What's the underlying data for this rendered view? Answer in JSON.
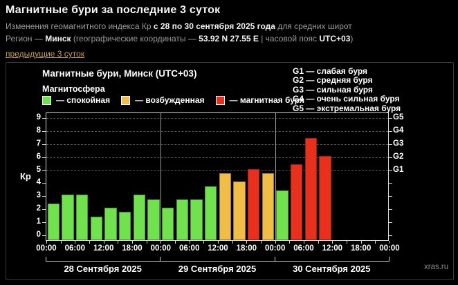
{
  "header": {
    "title": "Магнитные бури за последние 3 суток",
    "line1": [
      {
        "text": "Изменения геомагнитного индекса Кр ",
        "bold": false
      },
      {
        "text": "с 28 по 30 сентября 2025 года",
        "bold": true
      },
      {
        "text": " для средних широт",
        "bold": false
      }
    ],
    "line2": [
      {
        "text": "Регион — ",
        "bold": false
      },
      {
        "text": "Минск",
        "bold": true
      },
      {
        "text": " (географические координаты — ",
        "bold": false
      },
      {
        "text": "53.92 N 27.55 E",
        "bold": true
      },
      {
        "text": " | часовой пояс ",
        "bold": false
      },
      {
        "text": "UTC+03",
        "bold": true
      },
      {
        "text": ")",
        "bold": false
      }
    ],
    "prev_link": "предыдущие 3 суток",
    "link_color": "#c9a227"
  },
  "panel": {
    "chart_title": "Магнитные бури, Минск (UTC+03)",
    "legend_title": "Магнитосфера",
    "legend": [
      {
        "name": "quiet",
        "label": "— спокойная",
        "color": "#70e24d"
      },
      {
        "name": "active",
        "label": "— возбужденная",
        "color": "#f0bd45"
      },
      {
        "name": "storm",
        "label": "— магнитная буря",
        "color": "#e8301c"
      }
    ],
    "g_legend": [
      "G1 — слабая буря",
      "G2 — средняя буря",
      "G3 — сильная буря",
      "G4 — очень сильная буря",
      "G5 — экстремальная буря"
    ],
    "watermark": "xras.ru"
  },
  "chart_data": {
    "type": "bar",
    "title": "Магнитные бури, Минск (UTC+03)",
    "ylabel": "Кр",
    "ylim": [
      0,
      9
    ],
    "y_ticks": [
      0,
      1,
      2,
      3,
      4,
      5,
      6,
      7,
      8,
      9
    ],
    "gridlines_at": [
      5,
      6,
      7,
      8,
      9
    ],
    "grid": "dashed horizontal at Kp 5-9, vertical day separators",
    "legend_position": "top-left",
    "right_axis": [
      {
        "kp": 5,
        "label": "G1"
      },
      {
        "kp": 6,
        "label": "G2"
      },
      {
        "kp": 7,
        "label": "G3"
      },
      {
        "kp": 8,
        "label": "G4"
      },
      {
        "kp": 9,
        "label": "G5"
      }
    ],
    "x_time_labels": [
      "00:00",
      "06:00",
      "12:00",
      "18:00",
      "00:00",
      "06:00",
      "12:00",
      "18:00",
      "00:00",
      "06:00",
      "12:00",
      "18:00",
      "00:00"
    ],
    "slots_per_day": 8,
    "hours_per_slot": 3,
    "days": [
      {
        "date": "28 Сентября 2025",
        "values": [
          2.33,
          3,
          3,
          1.33,
          2,
          1.67,
          3,
          2.67
        ]
      },
      {
        "date": "29 Сентября 2025",
        "values": [
          2,
          2.67,
          2.67,
          3.67,
          4.67,
          4,
          5,
          4.67
        ]
      },
      {
        "date": "30 Сентября 2025",
        "values": [
          3.33,
          5.33,
          7.33,
          6
        ]
      }
    ],
    "colors": {
      "quiet": "#70e24d",
      "active": "#f0bd45",
      "storm": "#e8301c"
    },
    "thresholds": {
      "active_from": 4,
      "storm_from": 5
    }
  }
}
